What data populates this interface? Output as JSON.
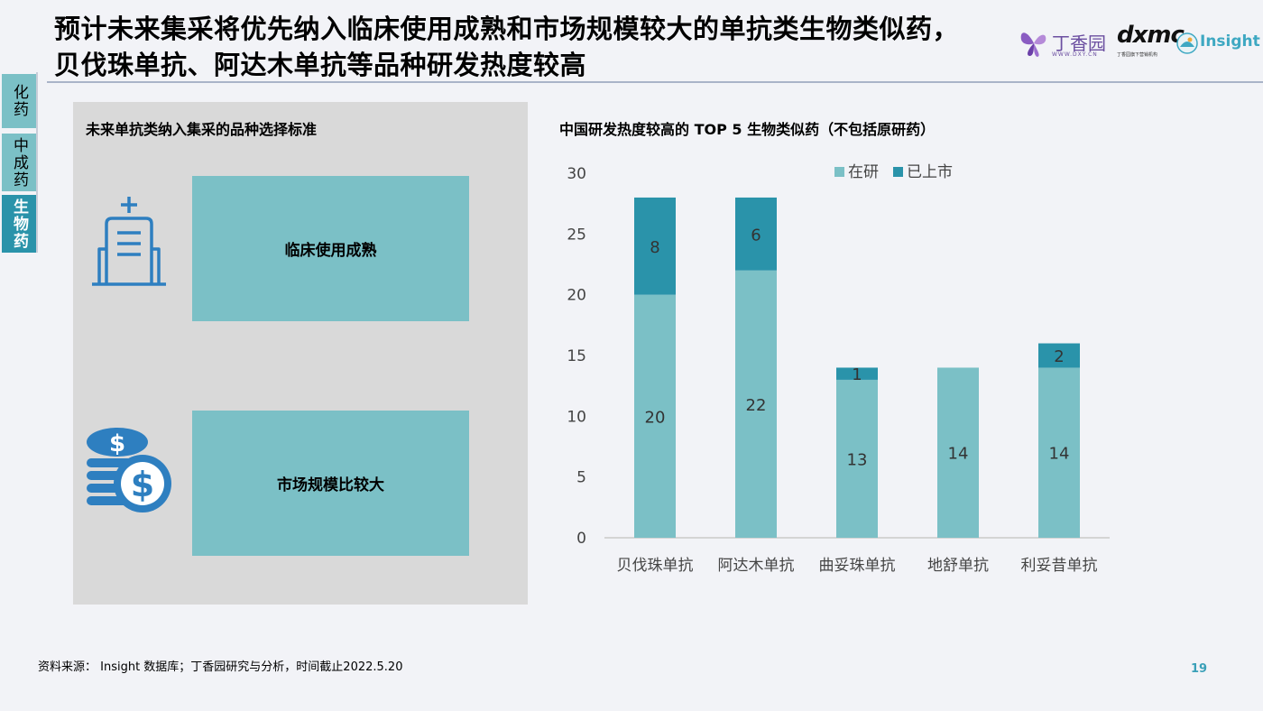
{
  "title_lines": [
    "预计未来集采将优先纳入临床使用成熟和市场规模较大的单抗类生物类似药，",
    "贝伐珠单抗、阿达木单抗等品种研发热度较高"
  ],
  "logos": {
    "dxy_name": "丁香园",
    "dxy_url": "WWW.DXY.CN",
    "dxmc_name": "dxmc",
    "dxmc_sub": "丁香园旗下营销机构",
    "insight_name": "Insight"
  },
  "side_tabs": [
    {
      "label": "化药",
      "active": false
    },
    {
      "label": "中成药",
      "active": false
    },
    {
      "label": "生物药",
      "active": true
    }
  ],
  "left_panel": {
    "heading": "未来单抗类纳入集采的品种选择标准",
    "criteria": [
      "临床使用成熟",
      "市场规模比较大"
    ],
    "icons": [
      "hospital-icon",
      "coins-icon"
    ]
  },
  "colors": {
    "in_research": "#7bc0c6",
    "marketed": "#2a93aa",
    "side_active": "#2a93aa",
    "side_inactive": "#7bc0c6"
  },
  "chart_data": {
    "type": "bar",
    "stacked": true,
    "title": "中国研发热度较高的 TOP 5 生物类似药（不包括原研药）",
    "categories": [
      "贝伐珠单抗",
      "阿达木单抗",
      "曲妥珠单抗",
      "地舒单抗",
      "利妥昔单抗"
    ],
    "series": [
      {
        "name": "在研",
        "values": [
          20,
          22,
          13,
          14,
          14
        ]
      },
      {
        "name": "已上市",
        "values": [
          8,
          6,
          1,
          0,
          2
        ]
      }
    ],
    "ylim": [
      0,
      30
    ],
    "yticks": [
      0,
      5,
      10,
      15,
      20,
      25,
      30
    ],
    "legend": "top-right",
    "grid": false
  },
  "footer": {
    "source": "资料来源： Insight 数据库；丁香园研究与分析，时间截止2022.5.20",
    "page": "19"
  }
}
